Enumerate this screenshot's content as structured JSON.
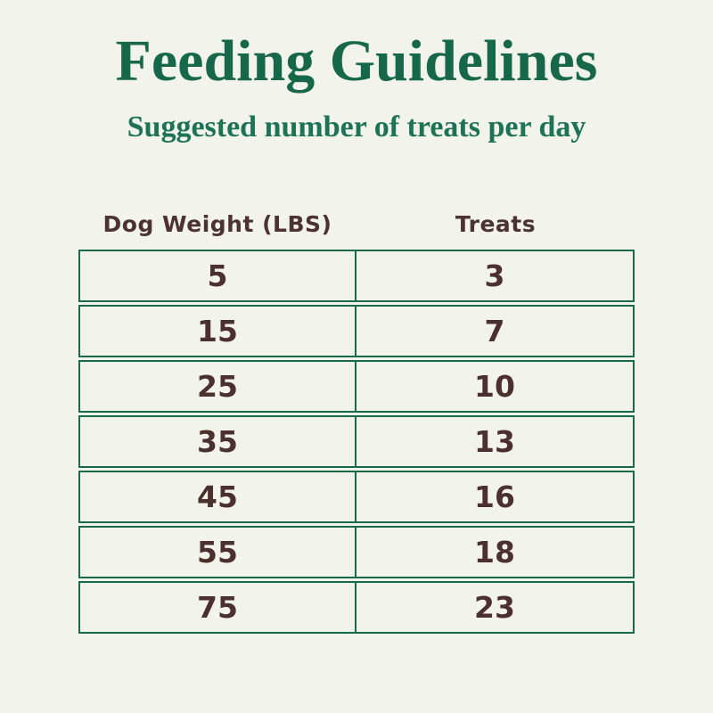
{
  "page": {
    "title": "Feeding Guidelines",
    "subtitle": "Suggested number of treats per day"
  },
  "table": {
    "columns": [
      "Dog Weight (LBS)",
      "Treats"
    ],
    "rows": [
      {
        "weight": "5",
        "treats": "3"
      },
      {
        "weight": "15",
        "treats": "7"
      },
      {
        "weight": "25",
        "treats": "10"
      },
      {
        "weight": "35",
        "treats": "13"
      },
      {
        "weight": "45",
        "treats": "16"
      },
      {
        "weight": "55",
        "treats": "18"
      },
      {
        "weight": "75",
        "treats": "23"
      }
    ]
  },
  "colors": {
    "background": "#f2f3eb",
    "title_green": "#17684b",
    "subtitle_green": "#1d7356",
    "border_green": "#186a4b",
    "text_brown": "#4b302e"
  },
  "chart_data": {
    "type": "table",
    "title": "Feeding Guidelines",
    "subtitle": "Suggested number of treats per day",
    "columns": [
      "Dog Weight (LBS)",
      "Treats"
    ],
    "categories": [
      5,
      15,
      25,
      35,
      45,
      55,
      75
    ],
    "values": [
      3,
      7,
      10,
      13,
      16,
      18,
      23
    ],
    "xlabel": "Dog Weight (LBS)",
    "ylabel": "Treats"
  }
}
